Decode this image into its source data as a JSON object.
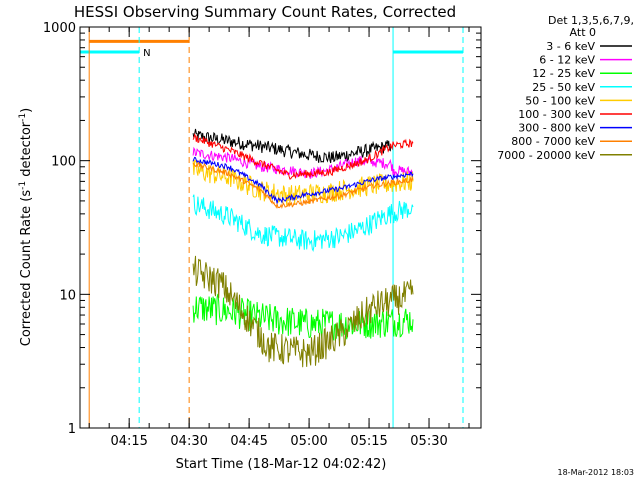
{
  "chart_data": {
    "type": "line",
    "title": "HESSI Observing Summary Count Rates, Corrected",
    "xlabel": "Start Time (18-Mar-12 04:02:42)",
    "ylabel": "Corrected Count Rate (s⁻¹ detector⁻¹)",
    "ylabel_parts": [
      "Corrected Count Rate (s",
      "-1",
      " detector",
      "-1",
      ")"
    ],
    "footer_timestamp": "18-Mar-2012 18:03",
    "y_scale": "log",
    "ylim": [
      1,
      1000
    ],
    "xlim": [
      "04:02:42",
      "05:43:00"
    ],
    "x_ticks": [
      "04:15",
      "04:30",
      "04:45",
      "05:00",
      "05:15",
      "05:30"
    ],
    "y_ticks": [
      "1",
      "10",
      "100",
      "1000"
    ],
    "legend_header": [
      "Det 1,3,5,6,7,9,",
      "Att 0"
    ],
    "legend_position": "right-outside",
    "series": [
      {
        "name": "3 - 6 keV",
        "color": "#000000",
        "noise": 0.05,
        "points": [
          [
            "04:31:00",
            155
          ],
          [
            "04:40:00",
            140
          ],
          [
            "04:50:00",
            125
          ],
          [
            "05:00:00",
            110
          ],
          [
            "05:06:00",
            105
          ],
          [
            "05:12:00",
            115
          ],
          [
            "05:18:00",
            125
          ],
          [
            "05:20:30",
            130
          ]
        ]
      },
      {
        "name": "6 - 12 keV",
        "color": "#ff00ff",
        "noise": 0.04,
        "points": [
          [
            "04:31:00",
            115
          ],
          [
            "04:40:00",
            105
          ],
          [
            "04:48:00",
            90
          ],
          [
            "04:55:00",
            85
          ],
          [
            "05:00:00",
            80
          ],
          [
            "05:05:00",
            85
          ],
          [
            "05:12:00",
            100
          ],
          [
            "05:20:30",
            95
          ],
          [
            "05:21:00",
            85
          ],
          [
            "05:26:00",
            82
          ]
        ]
      },
      {
        "name": "12 - 25 keV",
        "color": "#00ff00",
        "noise": 0.12,
        "points": [
          [
            "04:31:00",
            8
          ],
          [
            "04:40:00",
            7.5
          ],
          [
            "04:50:00",
            6.5
          ],
          [
            "05:00:00",
            6
          ],
          [
            "05:10:00",
            6
          ],
          [
            "05:20:00",
            6.2
          ],
          [
            "05:26:00",
            6.5
          ]
        ]
      },
      {
        "name": "25 - 50 keV",
        "color": "#00ffff",
        "noise": 0.08,
        "points": [
          [
            "04:31:00",
            48
          ],
          [
            "04:40:00",
            38
          ],
          [
            "04:48:00",
            28
          ],
          [
            "05:00:00",
            25
          ],
          [
            "05:08:00",
            27
          ],
          [
            "05:14:00",
            32
          ],
          [
            "05:20:00",
            40
          ],
          [
            "05:26:00",
            45
          ]
        ]
      },
      {
        "name": "50 - 100 keV",
        "color": "#ffcc00",
        "noise": 0.08,
        "points": [
          [
            "04:31:00",
            85
          ],
          [
            "04:40:00",
            75
          ],
          [
            "04:48:00",
            60
          ],
          [
            "04:55:00",
            55
          ],
          [
            "05:05:00",
            58
          ],
          [
            "05:15:00",
            65
          ],
          [
            "05:26:00",
            70
          ]
        ]
      },
      {
        "name": "100 - 300 keV",
        "color": "#ff0000",
        "noise": 0.03,
        "points": [
          [
            "04:31:00",
            150
          ],
          [
            "04:40:00",
            120
          ],
          [
            "04:50:00",
            90
          ],
          [
            "04:55:00",
            78
          ],
          [
            "05:05:00",
            82
          ],
          [
            "05:14:00",
            100
          ],
          [
            "05:21:00",
            130
          ],
          [
            "05:26:00",
            135
          ]
        ]
      },
      {
        "name": "300 - 800 keV",
        "color": "#0000ff",
        "noise": 0.02,
        "points": [
          [
            "04:31:00",
            102
          ],
          [
            "04:40:00",
            90
          ],
          [
            "04:48:00",
            65
          ],
          [
            "04:52:00",
            50
          ],
          [
            "04:58:00",
            55
          ],
          [
            "05:08:00",
            62
          ],
          [
            "05:16:00",
            72
          ],
          [
            "05:26:00",
            80
          ]
        ]
      },
      {
        "name": "800 - 7000 keV",
        "color": "#ff8000",
        "noise": 0.02,
        "points": [
          [
            "04:31:00",
            95
          ],
          [
            "04:40:00",
            80
          ],
          [
            "04:48:00",
            60
          ],
          [
            "04:52:00",
            46
          ],
          [
            "04:58:00",
            48
          ],
          [
            "05:08:00",
            55
          ],
          [
            "05:16:00",
            65
          ],
          [
            "05:26:00",
            72
          ]
        ]
      },
      {
        "name": "7000 - 20000 keV",
        "color": "#808000",
        "noise": 0.12,
        "points": [
          [
            "04:31:00",
            15
          ],
          [
            "04:38:00",
            12
          ],
          [
            "04:44:00",
            7
          ],
          [
            "04:50:00",
            4
          ],
          [
            "05:00:00",
            3.6
          ],
          [
            "05:08:00",
            5
          ],
          [
            "05:16:00",
            8
          ],
          [
            "05:26:00",
            10
          ]
        ]
      }
    ],
    "flags": [
      {
        "name": "eclipse",
        "color": "#00ffff",
        "level": 650,
        "intervals": [
          [
            "04:02:42",
            "04:17:30"
          ],
          [
            "05:21:00",
            "05:38:30"
          ]
        ]
      },
      {
        "name": "saa",
        "color": "#ff8000",
        "level": 780,
        "intervals": [
          [
            "04:05:00",
            "04:30:00"
          ]
        ]
      }
    ],
    "flag_label": "N",
    "vlines": [
      {
        "t": "04:02:42",
        "color": "#00ffff",
        "dash": false
      },
      {
        "t": "04:05:00",
        "color": "#ff8000",
        "dash": false
      },
      {
        "t": "04:17:30",
        "color": "#00ffff",
        "dash": true
      },
      {
        "t": "04:30:00",
        "color": "#ff8000",
        "dash": true
      },
      {
        "t": "05:21:00",
        "color": "#00ffff",
        "dash": false
      },
      {
        "t": "05:38:30",
        "color": "#00ffff",
        "dash": true
      }
    ]
  }
}
